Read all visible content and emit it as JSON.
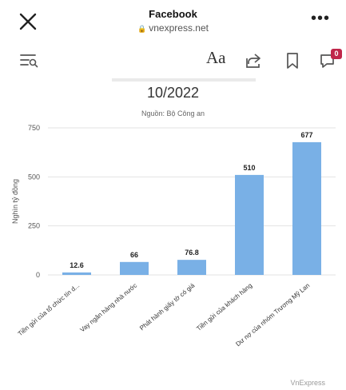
{
  "topbar": {
    "title": "Facebook",
    "url": "vnexpress.net"
  },
  "toolbar": {
    "font_label": "Aa",
    "badge_count": "0"
  },
  "chart_data": {
    "type": "bar",
    "title": "10/2022",
    "subtitle": "Nguồn: Bộ Công an",
    "ylabel": "Nghìn tỷ đồng",
    "ylim": [
      0,
      750
    ],
    "yticks": [
      0,
      250,
      500,
      750
    ],
    "grid": true,
    "color": "#79b0e6",
    "categories": [
      "Tiền gửi của tổ chức tín d...",
      "Vay ngân hàng nhà nước",
      "Phát hành giấy tờ có giá",
      "Tiền gửi của khách hàng",
      "Dư nợ của nhóm Trương Mỹ Lan"
    ],
    "values": [
      12.6,
      66,
      76.8,
      510,
      677
    ],
    "value_labels": [
      "12.6",
      "66",
      "76.8",
      "510",
      "677"
    ],
    "source_mark": "VnExpress"
  }
}
